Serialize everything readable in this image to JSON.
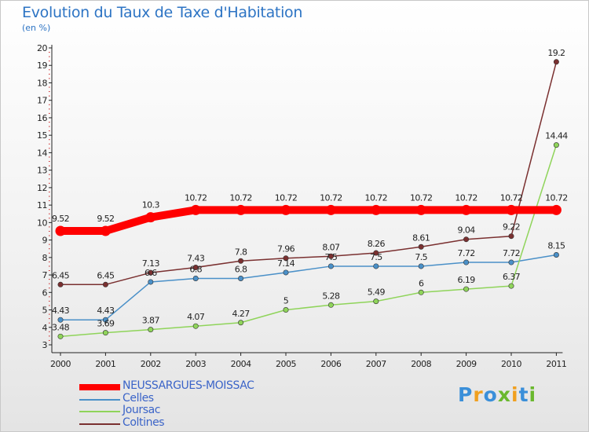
{
  "title": "Evolution du Taux de Taxe d'Habitation",
  "unit": "(en %)",
  "brand": "Proxiti",
  "chart_data": {
    "type": "line",
    "title": "Evolution du Taux de Taxe d'Habitation",
    "ylabel": "(en %)",
    "xlabel": "",
    "ylim": [
      3,
      20
    ],
    "yticks": [
      3,
      4,
      5,
      6,
      7,
      8,
      9,
      10,
      11,
      12,
      13,
      14,
      15,
      16,
      17,
      18,
      19,
      20
    ],
    "categories": [
      "2000",
      "2001",
      "2002",
      "2003",
      "2004",
      "2005",
      "2006",
      "2007",
      "2008",
      "2009",
      "2010",
      "2011"
    ],
    "grid": false,
    "legend_position": "bottom-left",
    "series": [
      {
        "name": "NEUSSARGUES-MOISSAC",
        "color": "#ff0000",
        "width": 10,
        "values": [
          9.52,
          9.52,
          10.3,
          10.72,
          10.72,
          10.72,
          10.72,
          10.72,
          10.72,
          10.72,
          10.72,
          10.72
        ],
        "labels": [
          "9.52",
          "9.52",
          "10.3",
          "10.72",
          "10.72",
          "10.72",
          "10.72",
          "10.72",
          "10.72",
          "10.72",
          "10.72",
          "10.72"
        ]
      },
      {
        "name": "Celles",
        "color": "#4a90c8",
        "width": 1.5,
        "values": [
          4.43,
          4.43,
          6.6,
          6.8,
          6.8,
          7.14,
          7.5,
          7.5,
          7.5,
          7.72,
          7.72,
          8.15
        ],
        "labels": [
          "4.43",
          "4.43",
          "6.6",
          "6.8",
          "6.8",
          "7.14",
          "7.5",
          "7.5",
          "7.5",
          "7.72",
          "7.72",
          "8.15"
        ]
      },
      {
        "name": "Joursac",
        "color": "#8fd45a",
        "width": 1.5,
        "values": [
          3.48,
          3.69,
          3.87,
          4.07,
          4.27,
          5,
          5.28,
          5.49,
          6,
          6.19,
          6.37,
          14.44
        ],
        "labels": [
          "3.48",
          "3.69",
          "3.87",
          "4.07",
          "4.27",
          "5",
          "5.28",
          "5.49",
          "6",
          "6.19",
          "6.37",
          "14.44"
        ]
      },
      {
        "name": "Coltines",
        "color": "#7a3030",
        "width": 1.5,
        "values": [
          6.45,
          6.45,
          7.13,
          7.43,
          7.8,
          7.96,
          8.07,
          8.26,
          8.61,
          9.04,
          9.22,
          19.2
        ],
        "labels": [
          "6.45",
          "6.45",
          "7.13",
          "7.43",
          "7.8",
          "7.96",
          "8.07",
          "8.26",
          "8.61",
          "9.04",
          "9.22",
          "19.2"
        ]
      }
    ]
  }
}
